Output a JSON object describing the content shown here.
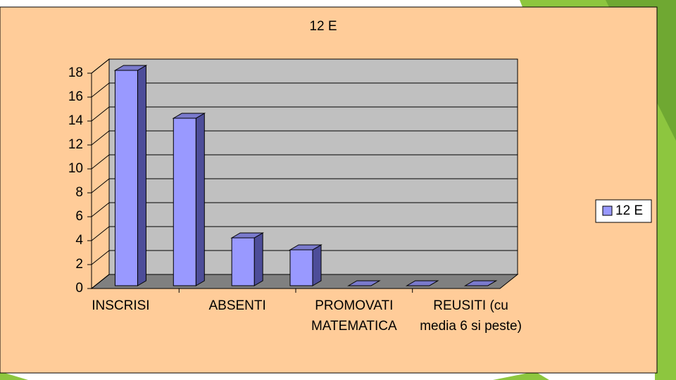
{
  "chart_data": {
    "type": "bar3d",
    "title": "12 E",
    "categories": [
      "INSCRISI",
      null,
      "ABSENTI",
      null,
      "PROMOVATI MATEMATICA",
      null,
      "REUSITI (cu media 6 si peste)"
    ],
    "series": [
      {
        "name": "12 E",
        "color": "#9999ff",
        "values": [
          18,
          14,
          4,
          3,
          0,
          0,
          0
        ]
      }
    ],
    "ylim": [
      0,
      18
    ],
    "yticks": [
      0,
      2,
      4,
      6,
      8,
      10,
      12,
      14,
      16,
      18
    ],
    "grid": true,
    "legend": "right"
  }
}
